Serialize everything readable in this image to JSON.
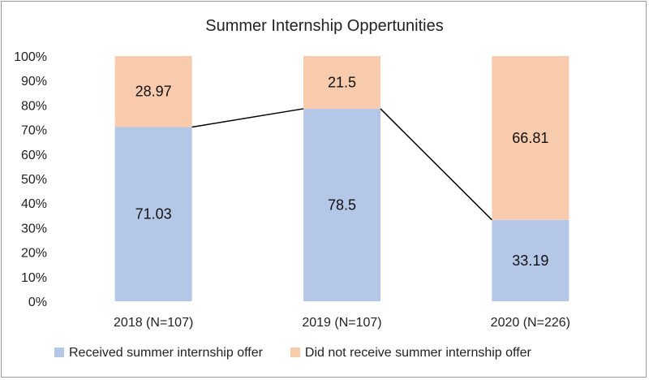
{
  "chart_data": {
    "type": "bar",
    "stacked": true,
    "percent_stacked": true,
    "title": "Summer Internship Oppertunities",
    "categories": [
      "2018 (N=107)",
      "2019 (N=107)",
      "2020 (N=226)"
    ],
    "series": [
      {
        "name": "Received summer internship offer",
        "values": [
          71.03,
          78.5,
          33.19
        ],
        "color": "#b4c7e7"
      },
      {
        "name": "Did not receive summer internship offer",
        "values": [
          28.97,
          21.5,
          66.81
        ],
        "color": "#f8cbad"
      }
    ],
    "data_labels": [
      [
        "71.03",
        "78.5",
        "33.19"
      ],
      [
        "28.97",
        "21.5",
        "66.81"
      ]
    ],
    "ylim": [
      0,
      100
    ],
    "yticks": [
      "0%",
      "10%",
      "20%",
      "30%",
      "40%",
      "50%",
      "60%",
      "70%",
      "80%",
      "90%",
      "100%"
    ],
    "series_lines": true,
    "series_line_color": "#000000",
    "grid": false,
    "legend_position": "bottom"
  }
}
